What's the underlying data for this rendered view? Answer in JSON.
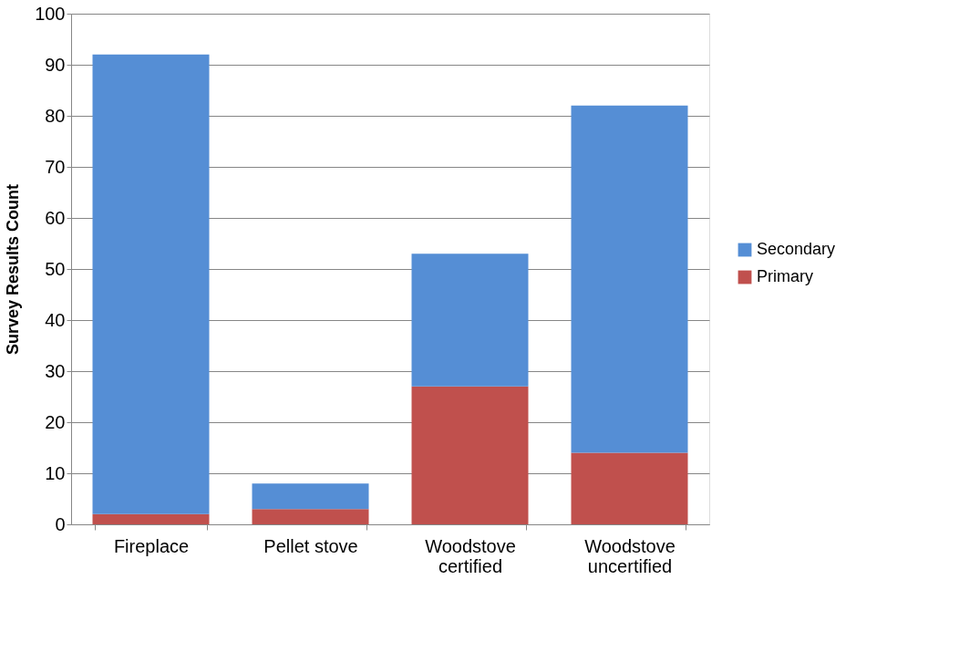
{
  "chart_data": {
    "type": "bar",
    "ylabel": "Survey Results Count",
    "categories": [
      "Fireplace",
      "Pellet stove",
      "Woodstove certified",
      "Woodstove uncertified"
    ],
    "series": [
      {
        "name": "Primary",
        "color": "#c0504d",
        "values": [
          2,
          3,
          27,
          14
        ]
      },
      {
        "name": "Secondary",
        "color": "#558ed5",
        "values": [
          90,
          5,
          26,
          68
        ]
      }
    ],
    "stacked": true,
    "ylim": [
      0,
      100
    ],
    "yticks": [
      0,
      10,
      20,
      30,
      40,
      50,
      60,
      70,
      80,
      90,
      100
    ],
    "grid": "y",
    "legend": "right"
  }
}
